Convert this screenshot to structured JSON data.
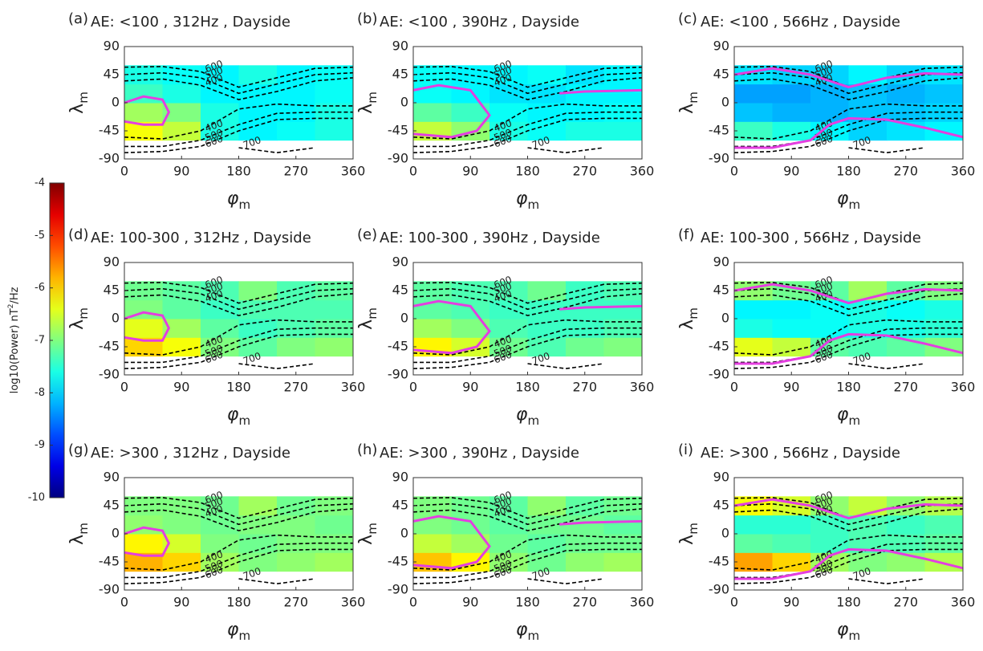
{
  "chart_data": {
    "type": "heatmap",
    "xlim": [
      0,
      360
    ],
    "ylim": [
      -90,
      90
    ],
    "xticks": [
      0,
      90,
      180,
      270,
      360
    ],
    "yticks": [
      90,
      45,
      0,
      -45,
      -90
    ],
    "xlabel": "φ",
    "xlabel_sub": "m",
    "ylabel": "λ",
    "ylabel_sub": "m",
    "z_x": [
      0,
      60,
      120,
      180,
      240,
      300,
      360
    ],
    "z_y": [
      -60,
      -30,
      0,
      30,
      60
    ],
    "contour_x": [
      0,
      60,
      120,
      180,
      240,
      300,
      360
    ],
    "contours": [
      {
        "level": 600,
        "y": [
          57,
          58,
          50,
          25,
          40,
          55,
          57
        ]
      },
      {
        "level": 500,
        "y": [
          45,
          48,
          40,
          15,
          30,
          45,
          48
        ]
      },
      {
        "level": 400,
        "y": [
          35,
          38,
          28,
          5,
          18,
          35,
          40
        ]
      },
      {
        "level": 400,
        "y": [
          -55,
          -58,
          -45,
          -10,
          -2,
          -5,
          -5
        ]
      },
      {
        "level": 500,
        "y": [
          -70,
          -70,
          -60,
          -35,
          -17,
          -15,
          -15
        ]
      },
      {
        "level": 600,
        "y": [
          -80,
          -78,
          -70,
          -45,
          -27,
          -25,
          -25
        ]
      },
      {
        "level": 700,
        "y": [
          null,
          null,
          null,
          -72,
          -80,
          -72,
          null
        ]
      }
    ],
    "magenta": [
      {
        "x": [
          0,
          30,
          60,
          70,
          60,
          30,
          0
        ],
        "y": [
          0,
          10,
          5,
          -15,
          -35,
          -35,
          -30
        ]
      },
      {
        "x": [
          0,
          40,
          90,
          120,
          100,
          60,
          0,
          null,
          230,
          270,
          360
        ],
        "y": [
          20,
          28,
          20,
          -20,
          -45,
          -55,
          -50,
          null,
          15,
          18,
          20
        ]
      },
      {
        "x": [
          0,
          60,
          120,
          180,
          240,
          300,
          360,
          null,
          0,
          60,
          120,
          150,
          180,
          240,
          300,
          360
        ],
        "y": [
          45,
          55,
          45,
          25,
          40,
          47,
          45,
          null,
          -72,
          -72,
          -60,
          -35,
          -25,
          -27,
          -40,
          -55
        ]
      }
    ],
    "colorbar": {
      "label": "log10(Power)  nT",
      "label_sup": "2",
      "label_end": "/Hz",
      "lim": [
        -10,
        -4
      ],
      "ticks": [
        -4,
        -5,
        -6,
        -7,
        -8,
        -9,
        -10
      ]
    },
    "panels": [
      {
        "label": "(a)",
        "title": "AE: <100 , 312Hz , Dayside",
        "z": [
          [
            -6.3,
            -6.6,
            -7.6,
            -7.8,
            -7.7,
            -7.6
          ],
          [
            -6.8,
            -7.0,
            -7.6,
            -7.8,
            -7.8,
            -7.6
          ],
          [
            -7.4,
            -7.6,
            -7.8,
            -7.8,
            -7.8,
            -7.7
          ],
          [
            -7.6,
            -7.7,
            -7.8,
            -7.6,
            -7.8,
            -7.7
          ]
        ]
      },
      {
        "label": "(b)",
        "title": "AE: <100 , 390Hz , Dayside",
        "z": [
          [
            -6.6,
            -6.9,
            -7.6,
            -7.7,
            -7.6,
            -7.6
          ],
          [
            -7.2,
            -7.4,
            -7.7,
            -7.8,
            -7.8,
            -7.7
          ],
          [
            -7.7,
            -7.8,
            -7.9,
            -7.9,
            -7.8,
            -7.8
          ],
          [
            -7.7,
            -7.8,
            -7.8,
            -7.7,
            -7.9,
            -7.8
          ]
        ]
      },
      {
        "label": "(c)",
        "title": "AE: <100 , 566Hz , Dayside",
        "z": [
          [
            -7.4,
            -7.6,
            -7.8,
            -8.0,
            -7.9,
            -7.8
          ],
          [
            -8.1,
            -8.2,
            -8.2,
            -8.1,
            -8.1,
            -8.0
          ],
          [
            -8.3,
            -8.3,
            -8.2,
            -8.1,
            -8.2,
            -8.1
          ],
          [
            -7.9,
            -8.0,
            -8.0,
            -7.8,
            -8.0,
            -7.9
          ]
        ]
      },
      {
        "label": "(d)",
        "title": "AE: 100-300 , 312Hz , Dayside",
        "z": [
          [
            -6.0,
            -6.3,
            -7.0,
            -7.2,
            -7.0,
            -6.9
          ],
          [
            -6.4,
            -6.8,
            -7.2,
            -7.4,
            -7.3,
            -7.2
          ],
          [
            -7.0,
            -7.2,
            -7.4,
            -7.3,
            -7.3,
            -7.3
          ],
          [
            -7.1,
            -7.2,
            -7.3,
            -7.0,
            -7.3,
            -7.2
          ]
        ]
      },
      {
        "label": "(e)",
        "title": "AE: 100-300 , 390Hz , Dayside",
        "z": [
          [
            -6.2,
            -6.5,
            -7.1,
            -7.3,
            -7.1,
            -7.0
          ],
          [
            -6.8,
            -7.0,
            -7.3,
            -7.4,
            -7.4,
            -7.3
          ],
          [
            -7.2,
            -7.3,
            -7.4,
            -7.4,
            -7.4,
            -7.4
          ],
          [
            -7.2,
            -7.3,
            -7.3,
            -7.1,
            -7.4,
            -7.3
          ]
        ]
      },
      {
        "label": "(f)",
        "title": "AE: 100-300 , 566Hz , Dayside",
        "z": [
          [
            -6.4,
            -6.6,
            -7.2,
            -7.3,
            -7.2,
            -7.0
          ],
          [
            -7.6,
            -7.7,
            -7.7,
            -7.6,
            -7.6,
            -7.5
          ],
          [
            -7.8,
            -7.8,
            -7.7,
            -7.6,
            -7.7,
            -7.6
          ],
          [
            -6.9,
            -7.1,
            -7.2,
            -6.8,
            -7.2,
            -7.0
          ]
        ]
      },
      {
        "label": "(g)",
        "title": "AE: >300 , 312Hz , Dayside",
        "z": [
          [
            -5.8,
            -6.0,
            -6.8,
            -7.0,
            -6.9,
            -6.8
          ],
          [
            -6.2,
            -6.5,
            -7.0,
            -7.1,
            -7.0,
            -7.0
          ],
          [
            -6.9,
            -7.0,
            -7.1,
            -7.0,
            -7.0,
            -7.1
          ],
          [
            -7.0,
            -7.0,
            -7.1,
            -6.8,
            -7.1,
            -7.0
          ]
        ]
      },
      {
        "label": "(h)",
        "title": "AE: >300 , 390Hz , Dayside",
        "z": [
          [
            -5.9,
            -6.2,
            -6.9,
            -7.1,
            -6.9,
            -6.8
          ],
          [
            -6.6,
            -6.8,
            -7.1,
            -7.2,
            -7.1,
            -7.1
          ],
          [
            -7.0,
            -7.1,
            -7.2,
            -7.1,
            -7.1,
            -7.2
          ],
          [
            -7.0,
            -7.1,
            -7.2,
            -6.9,
            -7.2,
            -7.1
          ]
        ]
      },
      {
        "label": "(i)",
        "title": "AE: >300 , 566Hz , Dayside",
        "z": [
          [
            -5.7,
            -6.0,
            -6.8,
            -7.0,
            -6.9,
            -6.7
          ],
          [
            -7.2,
            -7.3,
            -7.4,
            -7.3,
            -7.3,
            -7.2
          ],
          [
            -7.5,
            -7.5,
            -7.4,
            -7.3,
            -7.4,
            -7.3
          ],
          [
            -6.3,
            -6.5,
            -6.9,
            -6.6,
            -6.9,
            -6.7
          ]
        ]
      }
    ]
  }
}
